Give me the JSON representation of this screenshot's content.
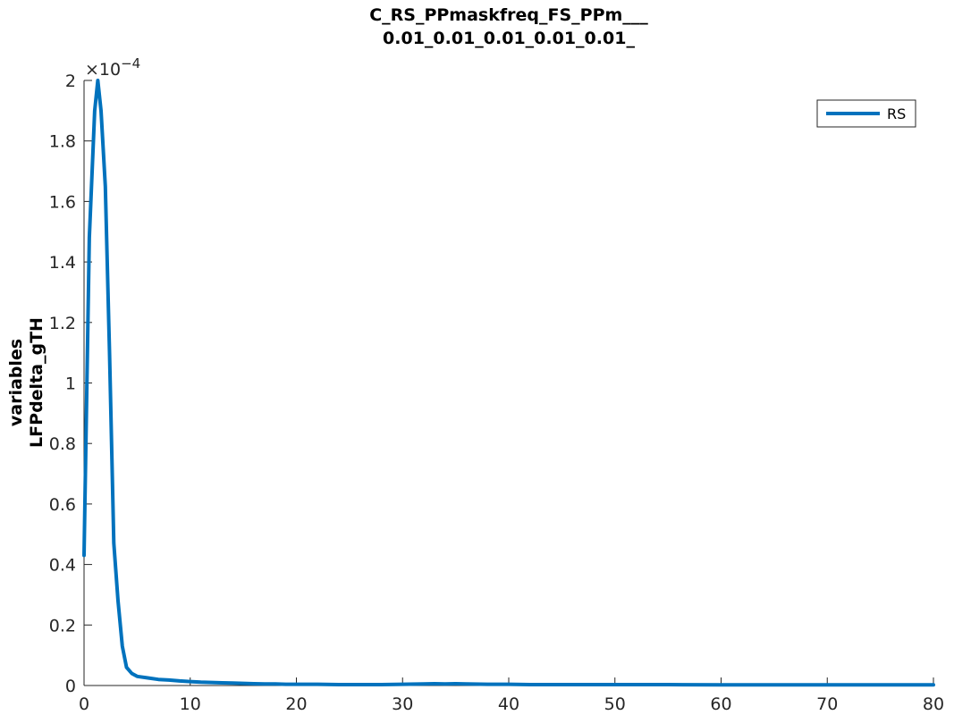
{
  "chart_data": {
    "type": "line",
    "title": [
      "C_RS_PPmaskfreq_FS_PPm___",
      "0.01_0.01_0.01_0.01_0.01_"
    ],
    "xlabel": "",
    "ylabel": [
      "variables",
      "LFPdelta_gTH"
    ],
    "xlim": [
      0,
      80
    ],
    "ylim": [
      0,
      0.0002
    ],
    "y_exponent_label": "×10",
    "y_exponent_power": "−4",
    "x_ticks": [
      0,
      10,
      20,
      30,
      40,
      50,
      60,
      70,
      80
    ],
    "x_tick_labels": [
      "0",
      "10",
      "20",
      "30",
      "40",
      "50",
      "60",
      "70",
      "80"
    ],
    "y_ticks": [
      0,
      2e-05,
      4e-05,
      6e-05,
      8e-05,
      0.0001,
      0.00012,
      0.00014,
      0.00016,
      0.00018,
      0.0002
    ],
    "y_tick_labels": [
      "0",
      "0.2",
      "0.4",
      "0.6",
      "0.8",
      "1",
      "1.2",
      "1.4",
      "1.6",
      "1.8",
      "2"
    ],
    "grid": false,
    "legend_position": "top-right",
    "series": [
      {
        "name": "RS",
        "color": "#0072BD",
        "x": [
          0,
          0.5,
          1.0,
          1.3,
          1.6,
          2.0,
          2.4,
          2.8,
          3.2,
          3.6,
          4.0,
          4.5,
          5.0,
          6.0,
          7.0,
          8.0,
          9.0,
          10.0,
          11.0,
          12.0,
          13.0,
          14.0,
          15.0,
          16.0,
          17.0,
          18.0,
          19.0,
          20.0,
          22.0,
          24.0,
          26.0,
          28.0,
          30.0,
          32.0,
          33.0,
          34.0,
          35.0,
          36.0,
          38.0,
          40.0,
          42.0,
          44.0,
          46.0,
          48.0,
          50.0,
          55.0,
          60.0,
          65.0,
          70.0,
          75.0,
          80.0
        ],
        "y": [
          4.3e-05,
          0.000148,
          0.00019,
          0.0002,
          0.00019,
          0.000165,
          0.00011,
          4.7e-05,
          2.8e-05,
          1.3e-05,
          6e-06,
          4e-06,
          3e-06,
          2.5e-06,
          2e-06,
          1.8e-06,
          1.5e-06,
          1.3e-06,
          1.1e-06,
          1e-06,
          9e-07,
          8e-07,
          7e-07,
          6e-07,
          5e-07,
          5e-07,
          4e-07,
          4e-07,
          4e-07,
          3e-07,
          3e-07,
          3e-07,
          4e-07,
          5e-07,
          6e-07,
          5e-07,
          6e-07,
          5e-07,
          4e-07,
          4e-07,
          3e-07,
          3e-07,
          3e-07,
          3e-07,
          3e-07,
          3e-07,
          2e-07,
          2e-07,
          2e-07,
          2e-07,
          2e-07
        ]
      }
    ]
  }
}
